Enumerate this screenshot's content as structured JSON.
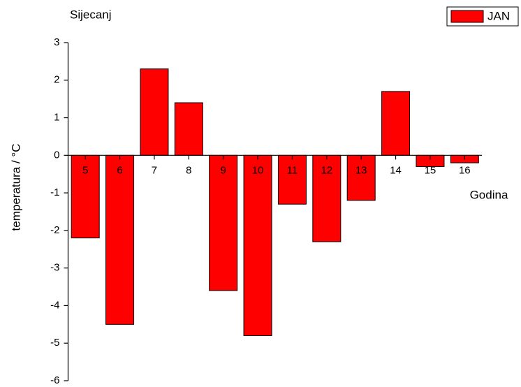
{
  "chart_data": {
    "type": "bar",
    "title": "Sijecanj",
    "legend_label": "JAN",
    "x_label": "Godina",
    "y_label": "temperatura / °C",
    "categories": [
      "5",
      "6",
      "7",
      "8",
      "9",
      "10",
      "11",
      "12",
      "13",
      "14",
      "15",
      "16"
    ],
    "values": [
      -2.2,
      -4.5,
      2.3,
      1.4,
      -3.6,
      -4.8,
      -1.3,
      -2.3,
      -1.2,
      1.7,
      -0.3,
      -0.2
    ],
    "color": "#ff0000",
    "ylim": [
      -6,
      3
    ],
    "yticks": [
      -6,
      -5,
      -4,
      -3,
      -2,
      -1,
      0,
      1,
      2,
      3
    ],
    "grid": false
  }
}
